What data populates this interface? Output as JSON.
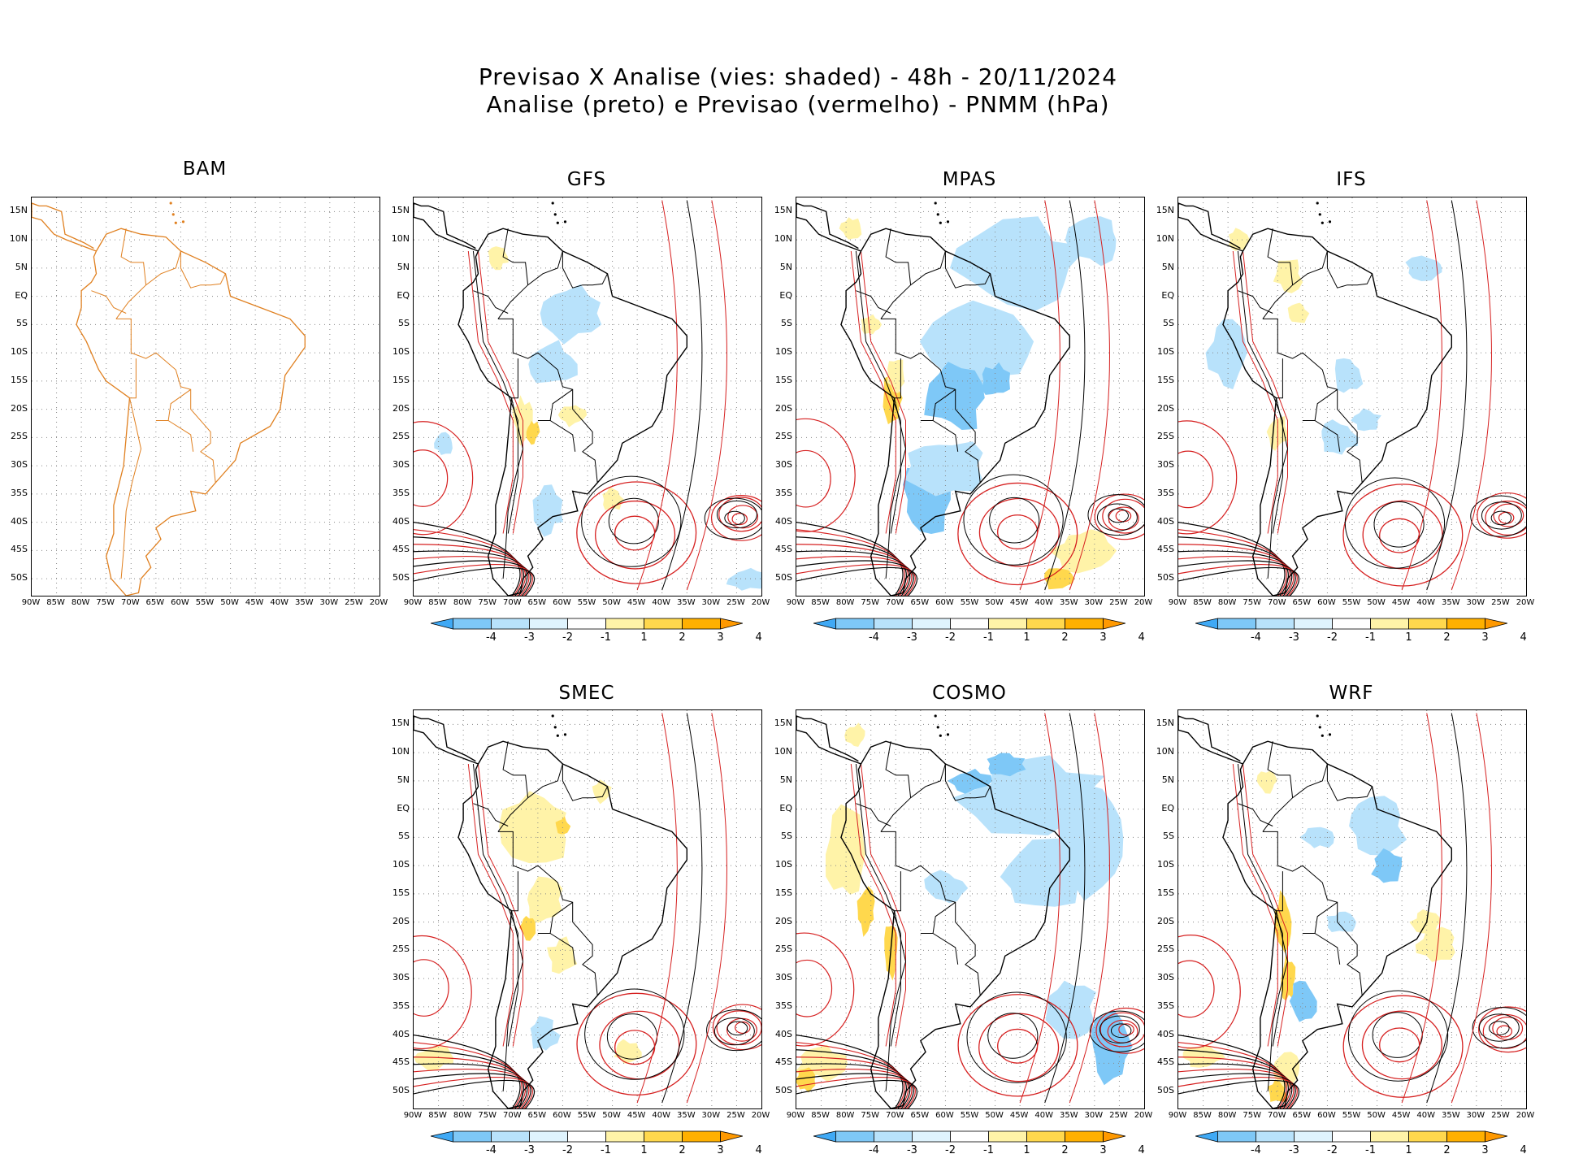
{
  "title": {
    "line1": "Previsao X Analise (vies: shaded) - 48h - 20/11/2024",
    "line2": "Analise (preto) e Previsao (vermelho) - PNMM (hPa)"
  },
  "axes": {
    "lat_labels": [
      "15N",
      "10N",
      "5N",
      "EQ",
      "5S",
      "10S",
      "15S",
      "20S",
      "25S",
      "30S",
      "35S",
      "40S",
      "45S",
      "50S"
    ],
    "lon_labels": [
      "90W",
      "85W",
      "80W",
      "75W",
      "70W",
      "65W",
      "60W",
      "55W",
      "50W",
      "45W",
      "40W",
      "35W",
      "30W",
      "25W",
      "20W"
    ]
  },
  "colorbar": {
    "labels": [
      "-4",
      "-3",
      "-2",
      "-1",
      "1",
      "2",
      "3",
      "4"
    ],
    "colors": [
      "#3fa9f5",
      "#7ec8f7",
      "#b8e2fb",
      "#dff3fd",
      "#ffffff",
      "#fff3a8",
      "#ffd84d",
      "#ffb000",
      "#ff9900"
    ]
  },
  "colors": {
    "analysis": "#000000",
    "forecast": "#d62020",
    "bam_map": "#e08020"
  },
  "panels": [
    {
      "id": "bam",
      "title": "BAM"
    },
    {
      "id": "gfs",
      "title": "GFS"
    },
    {
      "id": "mpas",
      "title": "MPAS"
    },
    {
      "id": "ifs",
      "title": "IFS"
    },
    {
      "id": "smec",
      "title": "SMEC"
    },
    {
      "id": "cosmo",
      "title": "COSMO"
    },
    {
      "id": "wrf",
      "title": "WRF"
    }
  ]
}
